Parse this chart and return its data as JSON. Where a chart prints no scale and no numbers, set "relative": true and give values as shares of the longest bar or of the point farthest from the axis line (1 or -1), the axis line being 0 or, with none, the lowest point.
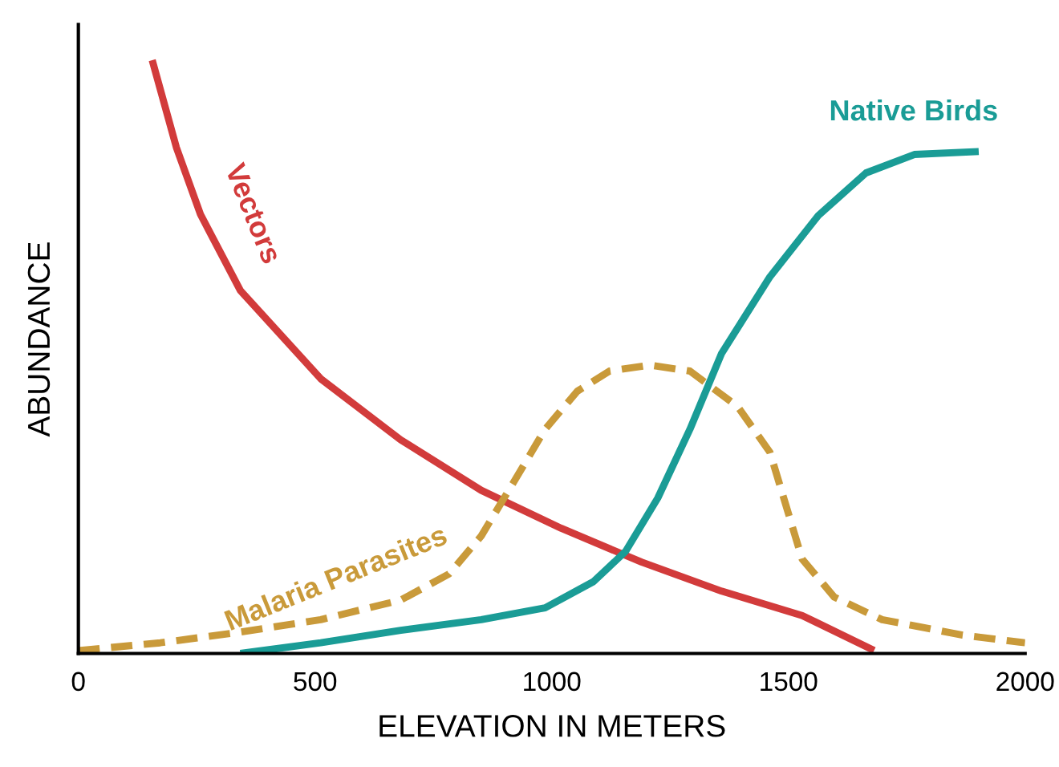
{
  "chart_data": {
    "type": "line",
    "relative": true,
    "xlabel": "ELEVATION IN METERS",
    "ylabel": "ABUNDANCE",
    "xlim": [
      0,
      2000
    ],
    "xticks": [
      0,
      500,
      1000,
      1500,
      2000
    ],
    "tick_labels": "x",
    "grid": false,
    "legend": false,
    "marker": "none",
    "series": [
      {
        "name": "Vectors",
        "color": "#d23b3b",
        "line_style": "solid",
        "x": [
          156,
          207,
          258,
          342,
          512,
          681,
          851,
          1020,
          1190,
          1359,
          1529,
          1681
        ],
        "values": [
          1.0,
          0.853,
          0.74,
          0.612,
          0.463,
          0.36,
          0.275,
          0.211,
          0.154,
          0.105,
          0.064,
          0.005
        ]
      },
      {
        "name": "Native Birds",
        "color": "#1a9c96",
        "line_style": "solid",
        "x": [
          342,
          512,
          681,
          851,
          986,
          1088,
          1156,
          1224,
          1292,
          1359,
          1461,
          1563,
          1664,
          1766,
          1902
        ],
        "values": [
          0,
          0.018,
          0.039,
          0.057,
          0.077,
          0.121,
          0.172,
          0.262,
          0.378,
          0.506,
          0.635,
          0.738,
          0.81,
          0.841,
          0.846
        ]
      },
      {
        "name": "Malaria Parasites",
        "color": "#c99a3a",
        "line_style": "dashed",
        "x": [
          0,
          173,
          342,
          512,
          681,
          783,
          851,
          919,
          986,
          1054,
          1122,
          1207,
          1292,
          1393,
          1461,
          1495,
          1529,
          1597,
          1698,
          1868,
          2000
        ],
        "values": [
          0.005,
          0.018,
          0.036,
          0.057,
          0.09,
          0.134,
          0.198,
          0.288,
          0.378,
          0.442,
          0.476,
          0.486,
          0.476,
          0.416,
          0.339,
          0.249,
          0.159,
          0.095,
          0.057,
          0.031,
          0.018
        ]
      }
    ]
  }
}
